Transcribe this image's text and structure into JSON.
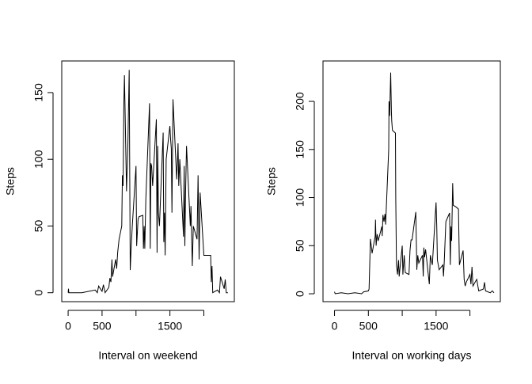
{
  "chart_data": [
    {
      "type": "line",
      "xlabel": "Interval on weekend",
      "ylabel": "Steps",
      "color": "#000000",
      "xlim": [
        -94,
        2449
      ],
      "ylim": [
        -6.7,
        173.7
      ],
      "xticks": [
        0,
        500,
        1500
      ],
      "xticks_unlabeled": [
        1000,
        2000
      ],
      "yticks": [
        0,
        50,
        100,
        150
      ],
      "x": [
        0,
        5,
        10,
        200,
        400,
        430,
        450,
        500,
        520,
        545,
        600,
        615,
        630,
        645,
        655,
        700,
        715,
        730,
        750,
        790,
        800,
        810,
        820,
        830,
        845,
        860,
        880,
        900,
        915,
        930,
        945,
        1000,
        1010,
        1030,
        1045,
        1100,
        1110,
        1120,
        1130,
        1145,
        1200,
        1210,
        1220,
        1230,
        1245,
        1300,
        1310,
        1320,
        1330,
        1345,
        1400,
        1410,
        1420,
        1430,
        1445,
        1500,
        1510,
        1520,
        1530,
        1545,
        1600,
        1610,
        1620,
        1630,
        1645,
        1700,
        1710,
        1720,
        1730,
        1745,
        1800,
        1810,
        1830,
        1845,
        1900,
        1915,
        1930,
        1945,
        2000,
        2100,
        2110,
        2120,
        2130,
        2200,
        2230,
        2245,
        2300,
        2315,
        2330,
        2355
      ],
      "values": [
        0,
        3,
        0,
        0,
        2,
        0,
        5,
        1,
        6,
        0,
        4,
        11,
        8,
        25,
        12,
        25,
        18,
        30,
        40,
        50,
        88,
        80,
        140,
        163,
        120,
        76,
        110,
        167,
        17,
        35,
        50,
        95,
        35,
        55,
        57,
        58,
        33,
        50,
        33,
        70,
        142,
        33,
        97,
        95,
        80,
        130,
        30,
        110,
        60,
        50,
        120,
        38,
        60,
        28,
        100,
        125,
        115,
        108,
        60,
        145,
        85,
        98,
        112,
        80,
        100,
        42,
        95,
        35,
        75,
        110,
        50,
        65,
        20,
        50,
        40,
        88,
        25,
        75,
        28,
        28,
        8,
        20,
        0,
        2,
        0,
        12,
        3,
        10,
        0,
        0
      ]
    },
    {
      "type": "line",
      "xlabel": "Interval on working days",
      "ylabel": "Steps",
      "color": "#000000",
      "xlim": [
        -170,
        2449
      ],
      "ylim": [
        -8.2,
        242
      ],
      "xticks": [
        0,
        500,
        1500
      ],
      "xticks_unlabeled": [
        1000,
        2000
      ],
      "yticks": [
        0,
        50,
        100,
        150,
        200
      ],
      "x": [
        0,
        10,
        100,
        200,
        300,
        400,
        430,
        500,
        510,
        530,
        545,
        555,
        600,
        605,
        615,
        630,
        645,
        700,
        705,
        715,
        730,
        745,
        755,
        800,
        805,
        815,
        830,
        840,
        845,
        855,
        900,
        905,
        915,
        930,
        945,
        955,
        1000,
        1010,
        1030,
        1045,
        1100,
        1115,
        1130,
        1145,
        1200,
        1210,
        1215,
        1230,
        1245,
        1300,
        1310,
        1320,
        1330,
        1345,
        1400,
        1415,
        1430,
        1445,
        1500,
        1510,
        1520,
        1545,
        1600,
        1610,
        1620,
        1645,
        1700,
        1710,
        1720,
        1730,
        1745,
        1755,
        1800,
        1830,
        1845,
        1900,
        1915,
        1930,
        1945,
        2000,
        2015,
        2030,
        2045,
        2100,
        2130,
        2200,
        2215,
        2230,
        2300,
        2330,
        2355
      ],
      "values": [
        2,
        0,
        1,
        0,
        1,
        0,
        2,
        3,
        5,
        57,
        48,
        42,
        60,
        77,
        50,
        62,
        55,
        70,
        60,
        82,
        75,
        83,
        72,
        150,
        200,
        185,
        230,
        190,
        180,
        170,
        167,
        100,
        30,
        20,
        35,
        18,
        50,
        20,
        40,
        22,
        20,
        45,
        56,
        56,
        85,
        50,
        25,
        40,
        32,
        40,
        18,
        48,
        38,
        46,
        10,
        40,
        35,
        30,
        95,
        70,
        35,
        25,
        30,
        18,
        32,
        75,
        84,
        30,
        70,
        55,
        115,
        92,
        90,
        88,
        30,
        45,
        15,
        8,
        12,
        20,
        10,
        28,
        8,
        15,
        3,
        5,
        12,
        3,
        1,
        3,
        1
      ]
    }
  ]
}
